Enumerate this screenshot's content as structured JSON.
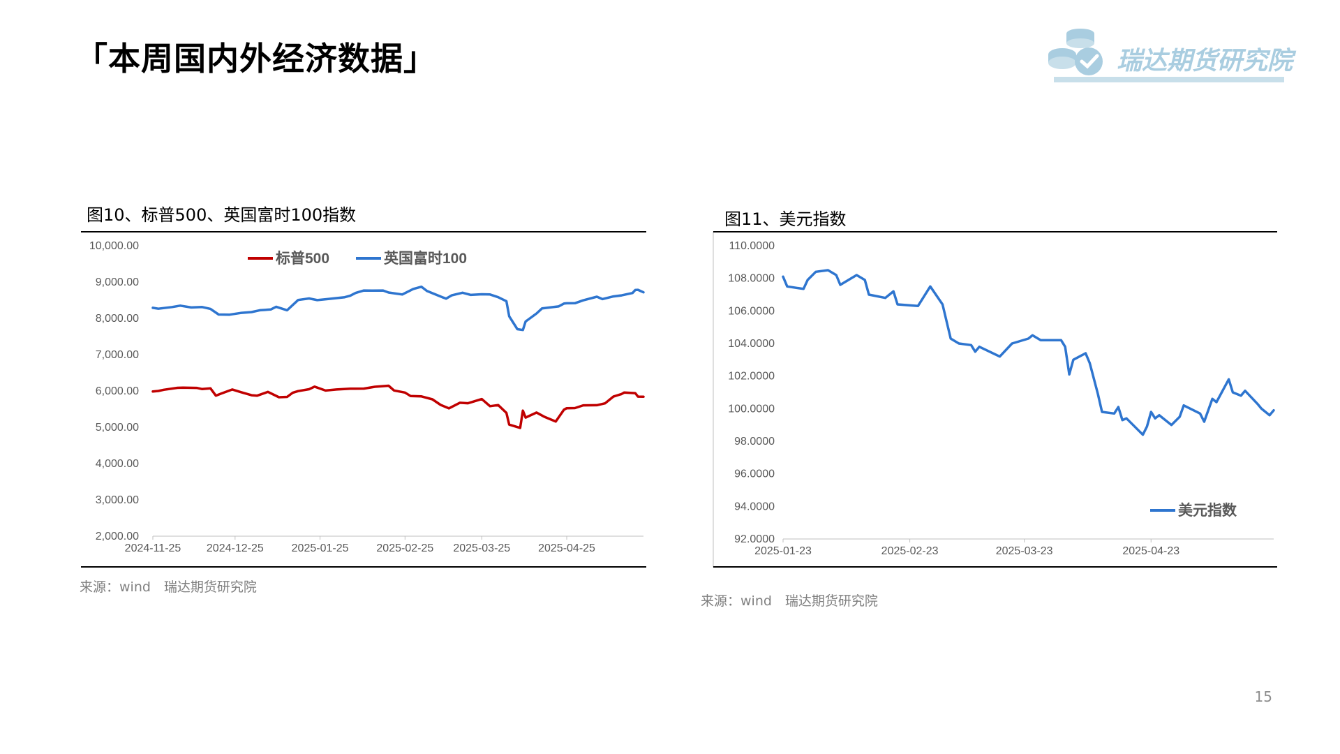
{
  "slide": {
    "title": "「本周国内外经济数据」",
    "logo_text": "瑞达期货研究院",
    "page_number": "15"
  },
  "charts_meta": [
    {
      "title": "图10、标普500、英国富时100指数",
      "source": "来源：wind　瑞达期货研究院"
    },
    {
      "title": "图11、美元指数",
      "source": "来源：wind　瑞达期货研究院"
    }
  ],
  "chart_data": [
    {
      "type": "line",
      "title": "图10、标普500、英国富时100指数",
      "xlabel": "",
      "ylabel": "",
      "x_ticks": [
        "2024-11-25",
        "2024-12-25",
        "2025-01-25",
        "2025-02-25",
        "2025-03-25",
        "2025-04-25"
      ],
      "x_range": [
        "2024-11-25",
        "2025-05-23"
      ],
      "ylim": [
        2000,
        10000
      ],
      "y_ticks": [
        "2,000.00",
        "3,000.00",
        "4,000.00",
        "5,000.00",
        "6,000.00",
        "7,000.00",
        "8,000.00",
        "9,000.00",
        "10,000.00"
      ],
      "grid": false,
      "legend": "top",
      "series": [
        {
          "name": "标普500",
          "color": "#c00000",
          "points": [
            [
              "2024-11-25",
              5987
            ],
            [
              "2024-11-27",
              6000
            ],
            [
              "2024-11-29",
              6032
            ],
            [
              "2024-12-04",
              6086
            ],
            [
              "2024-12-06",
              6090
            ],
            [
              "2024-12-11",
              6084
            ],
            [
              "2024-12-13",
              6051
            ],
            [
              "2024-12-16",
              6074
            ],
            [
              "2024-12-18",
              5872
            ],
            [
              "2024-12-20",
              5930
            ],
            [
              "2024-12-24",
              6040
            ],
            [
              "2024-12-27",
              5970
            ],
            [
              "2024-12-31",
              5882
            ],
            [
              "2025-01-02",
              5869
            ],
            [
              "2025-01-06",
              5975
            ],
            [
              "2025-01-10",
              5827
            ],
            [
              "2025-01-13",
              5836
            ],
            [
              "2025-01-15",
              5950
            ],
            [
              "2025-01-17",
              5997
            ],
            [
              "2025-01-21",
              6049
            ],
            [
              "2025-01-23",
              6119
            ],
            [
              "2025-01-27",
              6012
            ],
            [
              "2025-01-31",
              6041
            ],
            [
              "2025-02-05",
              6061
            ],
            [
              "2025-02-10",
              6066
            ],
            [
              "2025-02-14",
              6115
            ],
            [
              "2025-02-19",
              6144
            ],
            [
              "2025-02-21",
              6013
            ],
            [
              "2025-02-25",
              5956
            ],
            [
              "2025-02-27",
              5862
            ],
            [
              "2025-03-03",
              5850
            ],
            [
              "2025-03-07",
              5770
            ],
            [
              "2025-03-10",
              5615
            ],
            [
              "2025-03-13",
              5522
            ],
            [
              "2025-03-17",
              5675
            ],
            [
              "2025-03-20",
              5662
            ],
            [
              "2025-03-25",
              5776
            ],
            [
              "2025-03-28",
              5580
            ],
            [
              "2025-03-31",
              5612
            ],
            [
              "2025-04-03",
              5396
            ],
            [
              "2025-04-04",
              5074
            ],
            [
              "2025-04-08",
              4982
            ],
            [
              "2025-04-09",
              5457
            ],
            [
              "2025-04-10",
              5268
            ],
            [
              "2025-04-14",
              5405
            ],
            [
              "2025-04-17",
              5283
            ],
            [
              "2025-04-21",
              5158
            ],
            [
              "2025-04-24",
              5484
            ],
            [
              "2025-04-25",
              5525
            ],
            [
              "2025-04-28",
              5528
            ],
            [
              "2025-05-01",
              5604
            ],
            [
              "2025-05-06",
              5607
            ],
            [
              "2025-05-09",
              5660
            ],
            [
              "2025-05-12",
              5844
            ],
            [
              "2025-05-15",
              5916
            ],
            [
              "2025-05-16",
              5958
            ],
            [
              "2025-05-20",
              5940
            ],
            [
              "2025-05-21",
              5844
            ],
            [
              "2025-05-23",
              5842
            ]
          ]
        },
        {
          "name": "英国富时100",
          "color": "#2e75cf",
          "points": [
            [
              "2024-11-25",
              8291
            ],
            [
              "2024-11-27",
              8265
            ],
            [
              "2024-12-02",
              8312
            ],
            [
              "2024-12-05",
              8350
            ],
            [
              "2024-12-09",
              8300
            ],
            [
              "2024-12-13",
              8311
            ],
            [
              "2024-12-16",
              8262
            ],
            [
              "2024-12-19",
              8105
            ],
            [
              "2024-12-23",
              8102
            ],
            [
              "2024-12-27",
              8149
            ],
            [
              "2024-12-31",
              8173
            ],
            [
              "2025-01-03",
              8224
            ],
            [
              "2025-01-07",
              8245
            ],
            [
              "2025-01-09",
              8319
            ],
            [
              "2025-01-13",
              8224
            ],
            [
              "2025-01-17",
              8505
            ],
            [
              "2025-01-21",
              8548
            ],
            [
              "2025-01-24",
              8502
            ],
            [
              "2025-01-28",
              8533
            ],
            [
              "2025-02-03",
              8583
            ],
            [
              "2025-02-05",
              8623
            ],
            [
              "2025-02-07",
              8700
            ],
            [
              "2025-02-10",
              8767
            ],
            [
              "2025-02-13",
              8764
            ],
            [
              "2025-02-17",
              8768
            ],
            [
              "2025-02-19",
              8712
            ],
            [
              "2025-02-24",
              8658
            ],
            [
              "2025-02-28",
              8809
            ],
            [
              "2025-03-03",
              8871
            ],
            [
              "2025-03-05",
              8755
            ],
            [
              "2025-03-10",
              8600
            ],
            [
              "2025-03-12",
              8542
            ],
            [
              "2025-03-14",
              8632
            ],
            [
              "2025-03-18",
              8705
            ],
            [
              "2025-03-21",
              8646
            ],
            [
              "2025-03-25",
              8663
            ],
            [
              "2025-03-28",
              8658
            ],
            [
              "2025-03-31",
              8583
            ],
            [
              "2025-04-03",
              8474
            ],
            [
              "2025-04-04",
              8055
            ],
            [
              "2025-04-07",
              7702
            ],
            [
              "2025-04-09",
              7679
            ],
            [
              "2025-04-10",
              7913
            ],
            [
              "2025-04-14",
              8134
            ],
            [
              "2025-04-16",
              8275
            ],
            [
              "2025-04-22",
              8329
            ],
            [
              "2025-04-24",
              8407
            ],
            [
              "2025-04-25",
              8415
            ],
            [
              "2025-04-28",
              8417
            ],
            [
              "2025-05-01",
              8496
            ],
            [
              "2025-05-06",
              8597
            ],
            [
              "2025-05-08",
              8531
            ],
            [
              "2025-05-12",
              8604
            ],
            [
              "2025-05-15",
              8633
            ],
            [
              "2025-05-19",
              8699
            ],
            [
              "2025-05-20",
              8781
            ],
            [
              "2025-05-21",
              8786
            ],
            [
              "2025-05-23",
              8717
            ]
          ]
        }
      ]
    },
    {
      "type": "line",
      "title": "图11、美元指数",
      "xlabel": "",
      "ylabel": "",
      "x_ticks": [
        "2025-01-23",
        "2025-02-23",
        "2025-03-23",
        "2025-04-23"
      ],
      "x_range": [
        "2025-01-23",
        "2025-05-23"
      ],
      "ylim": [
        92,
        110
      ],
      "y_ticks": [
        "92.0000",
        "94.0000",
        "96.0000",
        "98.0000",
        "100.0000",
        "102.0000",
        "104.0000",
        "106.0000",
        "108.0000",
        "110.0000"
      ],
      "grid": false,
      "legend": "bottom-right",
      "series": [
        {
          "name": "美元指数",
          "color": "#2e75cf",
          "points": [
            [
              "2025-01-23",
              108.1
            ],
            [
              "2025-01-24",
              107.5
            ],
            [
              "2025-01-28",
              107.35
            ],
            [
              "2025-01-29",
              107.9
            ],
            [
              "2025-01-31",
              108.4
            ],
            [
              "2025-02-03",
              108.5
            ],
            [
              "2025-02-05",
              108.2
            ],
            [
              "2025-02-06",
              107.6
            ],
            [
              "2025-02-10",
              108.2
            ],
            [
              "2025-02-12",
              107.9
            ],
            [
              "2025-02-13",
              107.0
            ],
            [
              "2025-02-17",
              106.8
            ],
            [
              "2025-02-19",
              107.2
            ],
            [
              "2025-02-20",
              106.4
            ],
            [
              "2025-02-25",
              106.3
            ],
            [
              "2025-02-28",
              107.5
            ],
            [
              "2025-03-03",
              106.4
            ],
            [
              "2025-03-05",
              104.3
            ],
            [
              "2025-03-07",
              104.0
            ],
            [
              "2025-03-10",
              103.9
            ],
            [
              "2025-03-11",
              103.5
            ],
            [
              "2025-03-12",
              103.8
            ],
            [
              "2025-03-17",
              103.2
            ],
            [
              "2025-03-20",
              104.0
            ],
            [
              "2025-03-24",
              104.3
            ],
            [
              "2025-03-25",
              104.5
            ],
            [
              "2025-03-27",
              104.2
            ],
            [
              "2025-04-01",
              104.2
            ],
            [
              "2025-04-02",
              103.8
            ],
            [
              "2025-04-03",
              102.1
            ],
            [
              "2025-04-04",
              103.0
            ],
            [
              "2025-04-07",
              103.4
            ],
            [
              "2025-04-08",
              102.8
            ],
            [
              "2025-04-10",
              100.9
            ],
            [
              "2025-04-11",
              99.8
            ],
            [
              "2025-04-14",
              99.7
            ],
            [
              "2025-04-15",
              100.1
            ],
            [
              "2025-04-16",
              99.3
            ],
            [
              "2025-04-17",
              99.4
            ],
            [
              "2025-04-21",
              98.4
            ],
            [
              "2025-04-22",
              98.9
            ],
            [
              "2025-04-23",
              99.8
            ],
            [
              "2025-04-24",
              99.4
            ],
            [
              "2025-04-25",
              99.6
            ],
            [
              "2025-04-28",
              99.0
            ],
            [
              "2025-04-30",
              99.5
            ],
            [
              "2025-05-01",
              100.2
            ],
            [
              "2025-05-05",
              99.7
            ],
            [
              "2025-05-06",
              99.2
            ],
            [
              "2025-05-08",
              100.6
            ],
            [
              "2025-05-09",
              100.4
            ],
            [
              "2025-05-12",
              101.8
            ],
            [
              "2025-05-13",
              101.0
            ],
            [
              "2025-05-15",
              100.8
            ],
            [
              "2025-05-16",
              101.1
            ],
            [
              "2025-05-19",
              100.3
            ],
            [
              "2025-05-20",
              100.0
            ],
            [
              "2025-05-22",
              99.6
            ],
            [
              "2025-05-23",
              99.9
            ]
          ]
        }
      ]
    }
  ]
}
